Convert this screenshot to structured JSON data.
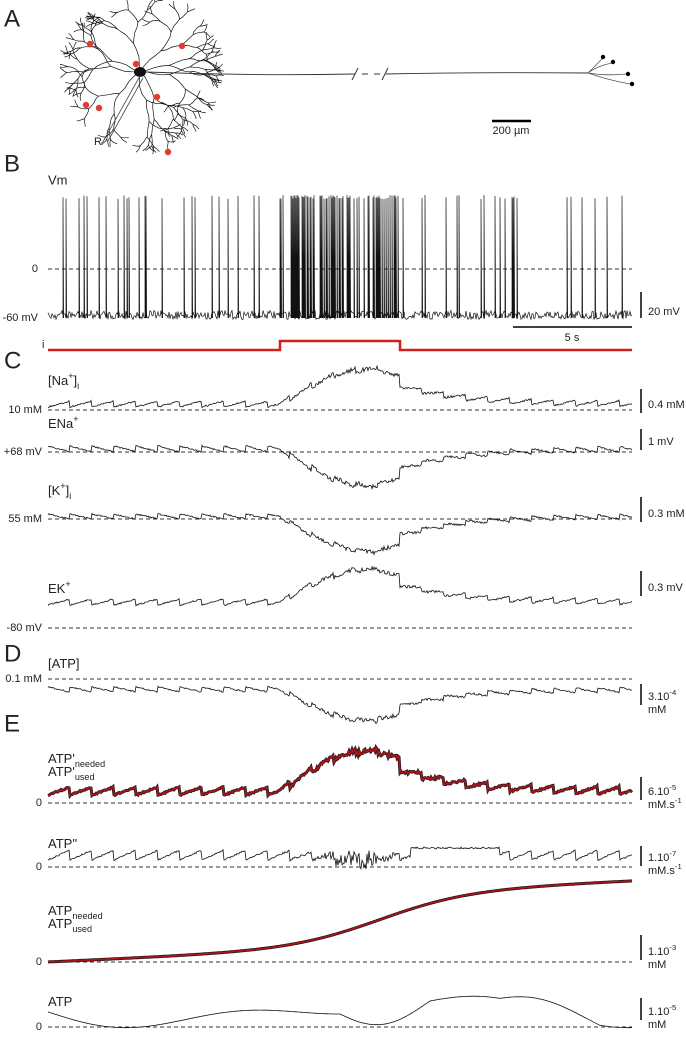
{
  "panels": {
    "A": {
      "letter": "A",
      "scale_bar": "200 µm",
      "electrode": "R"
    },
    "B": {
      "letter": "B",
      "trace": "Vm",
      "zero": "0",
      "rest": "-60 mV",
      "scale_v": "20 mV",
      "scale_t": "5 s",
      "stimulus": "i"
    },
    "C": {
      "letter": "C"
    },
    "D": {
      "letter": "D"
    },
    "E": {
      "letter": "E"
    }
  },
  "traces": [
    {
      "lines": [
        {
          "color": "#222",
          "segs": [
            {
              "text": "[Na"
            },
            {
              "sup": "+"
            },
            {
              "text": "]"
            },
            {
              "sub": "i"
            }
          ]
        }
      ],
      "baseline": "10 mM",
      "scale": [
        [
          {
            "text": "0.4 mM"
          }
        ]
      ]
    },
    {
      "lines": [
        {
          "color": "#222",
          "segs": [
            {
              "text": "ENa"
            },
            {
              "sup": "+"
            }
          ]
        }
      ],
      "baseline": "+68 mV",
      "scale": [
        [
          {
            "text": "1 mV"
          }
        ]
      ]
    },
    {
      "lines": [
        {
          "color": "#222",
          "segs": [
            {
              "text": "[K"
            },
            {
              "sup": "+"
            },
            {
              "text": "]"
            },
            {
              "sub": "i"
            }
          ]
        }
      ],
      "baseline": "55 mM",
      "scale": [
        [
          {
            "text": "0.3 mM"
          }
        ]
      ]
    },
    {
      "lines": [
        {
          "color": "#222",
          "segs": [
            {
              "text": "EK"
            },
            {
              "sup": "+"
            }
          ]
        }
      ],
      "baseline": "-80 mV",
      "scale": [
        [
          {
            "text": "0.3 mV"
          }
        ]
      ]
    },
    {
      "lines": [
        {
          "color": "#222",
          "segs": [
            {
              "text": "[ATP]"
            }
          ]
        }
      ],
      "baseline": "0.1 mM",
      "scale": [
        [
          {
            "text": "3.10"
          },
          {
            "sup": "-4"
          }
        ],
        [
          {
            "text": "mM"
          }
        ]
      ]
    },
    {
      "lines": [
        {
          "color": "#222",
          "segs": [
            {
              "text": "ATP'"
            },
            {
              "sub": "needed"
            }
          ]
        },
        {
          "color": "#d0201c",
          "segs": [
            {
              "text": "ATP'"
            },
            {
              "sub": "used"
            }
          ]
        }
      ],
      "baseline": "0",
      "scale": [
        [
          {
            "text": "6.10"
          },
          {
            "sup": "-5"
          }
        ],
        [
          {
            "text": "mM.s"
          },
          {
            "sup": "-1"
          }
        ]
      ]
    },
    {
      "lines": [
        {
          "color": "#222",
          "segs": [
            {
              "text": "ATP''"
            }
          ]
        }
      ],
      "baseline": "0",
      "scale": [
        [
          {
            "text": "1.10"
          },
          {
            "sup": "-7"
          }
        ],
        [
          {
            "text": "mM.s"
          },
          {
            "sup": "-1"
          }
        ]
      ]
    },
    {
      "lines": [
        {
          "color": "#222",
          "segs": [
            {
              "text": "ATP"
            },
            {
              "sub": "needed"
            }
          ]
        },
        {
          "color": "#d0201c",
          "segs": [
            {
              "text": "ATP"
            },
            {
              "sub": "used"
            }
          ]
        }
      ],
      "baseline": "0",
      "scale": [
        [
          {
            "text": "1.10"
          },
          {
            "sup": "-3"
          }
        ],
        [
          {
            "text": "mM"
          }
        ]
      ]
    },
    {
      "lines": [
        {
          "color": "#222",
          "segs": [
            {
              "text": "ATP"
            }
          ]
        }
      ],
      "baseline": "0",
      "scale": [
        [
          {
            "text": "1.10"
          },
          {
            "sup": "-5"
          }
        ],
        [
          {
            "text": "mM"
          }
        ]
      ]
    }
  ]
}
